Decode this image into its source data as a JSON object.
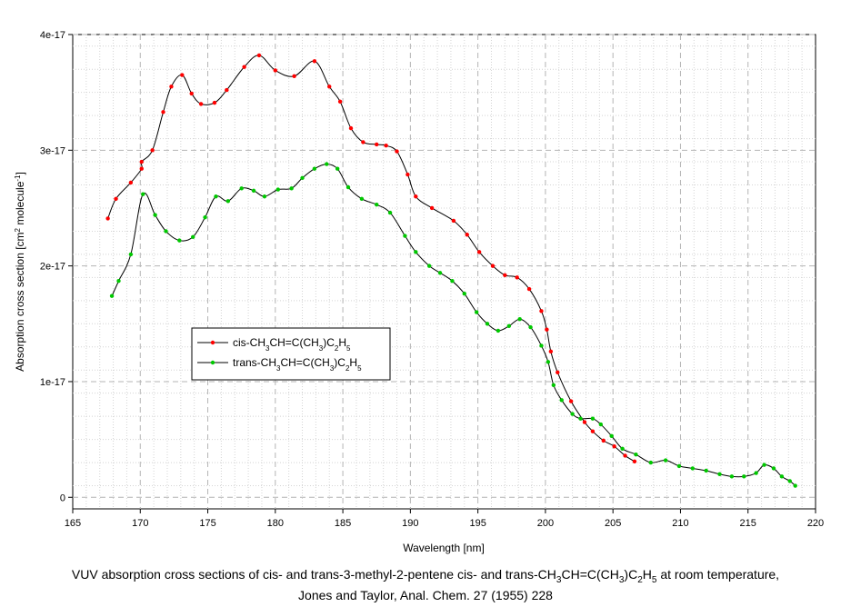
{
  "chart_data": {
    "type": "line",
    "title": "",
    "xlabel": "Wavelength [nm]",
    "ylabel_parts": [
      "Absorption cross section [cm",
      "2",
      " molecule",
      "-1",
      "]"
    ],
    "xlim": [
      165,
      220
    ],
    "ylim": [
      -1e-18,
      4e-17
    ],
    "x_ticks": [
      165,
      170,
      175,
      180,
      185,
      190,
      195,
      200,
      205,
      210,
      215,
      220
    ],
    "x_tick_labels": [
      "165",
      "170",
      "175",
      "180",
      "185",
      "190",
      "195",
      "200",
      "205",
      "210",
      "215",
      "220"
    ],
    "y_ticks": [
      0,
      1e-17,
      2e-17,
      3e-17,
      4e-17
    ],
    "y_tick_labels": [
      "0",
      "1e-17",
      "2e-17",
      "3e-17",
      "4e-17"
    ],
    "grid": true,
    "legend_position": "middle-left",
    "series": [
      {
        "name_parts": [
          "cis-CH",
          "3",
          "CH=C(CH",
          "3",
          ")C",
          "2",
          "H",
          "5"
        ],
        "name_sub": [
          false,
          true,
          false,
          true,
          false,
          true,
          false,
          true
        ],
        "color": "#ff0000",
        "line_color": "#000000",
        "x": [
          167.6,
          168.2,
          169.3,
          170.1,
          170.1,
          170.9,
          171.7,
          172.3,
          173.1,
          173.8,
          174.5,
          175.5,
          176.4,
          177.7,
          178.8,
          180.0,
          181.4,
          182.9,
          184.0,
          184.8,
          185.6,
          186.5,
          187.5,
          188.2,
          189.0,
          189.8,
          190.4,
          191.6,
          193.2,
          194.2,
          195.1,
          196.1,
          197.0,
          197.9,
          198.8,
          199.7,
          200.1,
          200.4,
          200.9,
          201.9,
          202.9,
          203.5,
          204.3,
          205.1,
          205.9,
          206.6
        ],
        "y": [
          2.41e-17,
          2.58e-17,
          2.72e-17,
          2.84e-17,
          2.9e-17,
          3e-17,
          3.33e-17,
          3.55e-17,
          3.65e-17,
          3.49e-17,
          3.4e-17,
          3.41e-17,
          3.52e-17,
          3.72e-17,
          3.82e-17,
          3.69e-17,
          3.64e-17,
          3.77e-17,
          3.55e-17,
          3.42e-17,
          3.19e-17,
          3.07e-17,
          3.05e-17,
          3.04e-17,
          2.99e-17,
          2.79e-17,
          2.6e-17,
          2.5e-17,
          2.39e-17,
          2.27e-17,
          2.12e-17,
          2e-17,
          1.92e-17,
          1.9e-17,
          1.8e-17,
          1.61e-17,
          1.45e-17,
          1.26e-17,
          1.08e-17,
          8.3e-18,
          6.5e-18,
          5.7e-18,
          4.9e-18,
          4.4e-18,
          3.6e-18,
          3.1e-18
        ]
      },
      {
        "name_parts": [
          "trans-CH",
          "3",
          "CH=C(CH",
          "3",
          ")C",
          "2",
          "H",
          "5"
        ],
        "name_sub": [
          false,
          true,
          false,
          true,
          false,
          true,
          false,
          true
        ],
        "color": "#00c800",
        "line_color": "#000000",
        "x": [
          167.9,
          168.4,
          169.3,
          170.2,
          171.1,
          171.9,
          172.9,
          173.9,
          174.8,
          175.6,
          176.5,
          177.5,
          178.4,
          179.2,
          180.2,
          181.2,
          182.0,
          182.9,
          183.8,
          184.6,
          185.4,
          186.4,
          187.5,
          188.5,
          189.6,
          190.4,
          191.4,
          192.2,
          193.1,
          194.0,
          194.9,
          195.7,
          196.5,
          197.3,
          198.1,
          198.9,
          199.7,
          200.2,
          200.6,
          201.2,
          202.0,
          202.6,
          203.5,
          204.1,
          204.9,
          205.7,
          206.7,
          207.8,
          208.9,
          209.9,
          210.9,
          211.9,
          212.9,
          213.8,
          214.7,
          215.6,
          216.2,
          216.9,
          217.5,
          218.1,
          218.5
        ],
        "y": [
          1.74e-17,
          1.87e-17,
          2.1e-17,
          2.62e-17,
          2.44e-17,
          2.3e-17,
          2.22e-17,
          2.25e-17,
          2.42e-17,
          2.6e-17,
          2.56e-17,
          2.67e-17,
          2.65e-17,
          2.6e-17,
          2.66e-17,
          2.67e-17,
          2.76e-17,
          2.84e-17,
          2.88e-17,
          2.84e-17,
          2.68e-17,
          2.58e-17,
          2.53e-17,
          2.46e-17,
          2.26e-17,
          2.12e-17,
          2e-17,
          1.94e-17,
          1.87e-17,
          1.76e-17,
          1.6e-17,
          1.5e-17,
          1.44e-17,
          1.48e-17,
          1.54e-17,
          1.47e-17,
          1.31e-17,
          1.17e-17,
          9.7e-18,
          8.4e-18,
          7.2e-18,
          6.8e-18,
          6.8e-18,
          6.3e-18,
          5.3e-18,
          4.2e-18,
          3.7e-18,
          3e-18,
          3.2e-18,
          2.7e-18,
          2.5e-18,
          2.3e-18,
          2e-18,
          1.8e-18,
          1.8e-18,
          2.1e-18,
          2.8e-18,
          2.5e-18,
          1.8e-18,
          1.4e-18,
          1e-18
        ]
      }
    ]
  },
  "caption": {
    "line1_parts": [
      "VUV absorption cross sections of cis- and trans-3-methyl-2-pentene cis- and trans-CH",
      "3",
      "CH=C(CH",
      "3",
      ")C",
      "2",
      "H",
      "5",
      " at room temperature,"
    ],
    "line1_sub": [
      false,
      true,
      false,
      true,
      false,
      true,
      false,
      true,
      false
    ],
    "line2": "Jones and Taylor, Anal. Chem. 27 (1955) 228"
  }
}
